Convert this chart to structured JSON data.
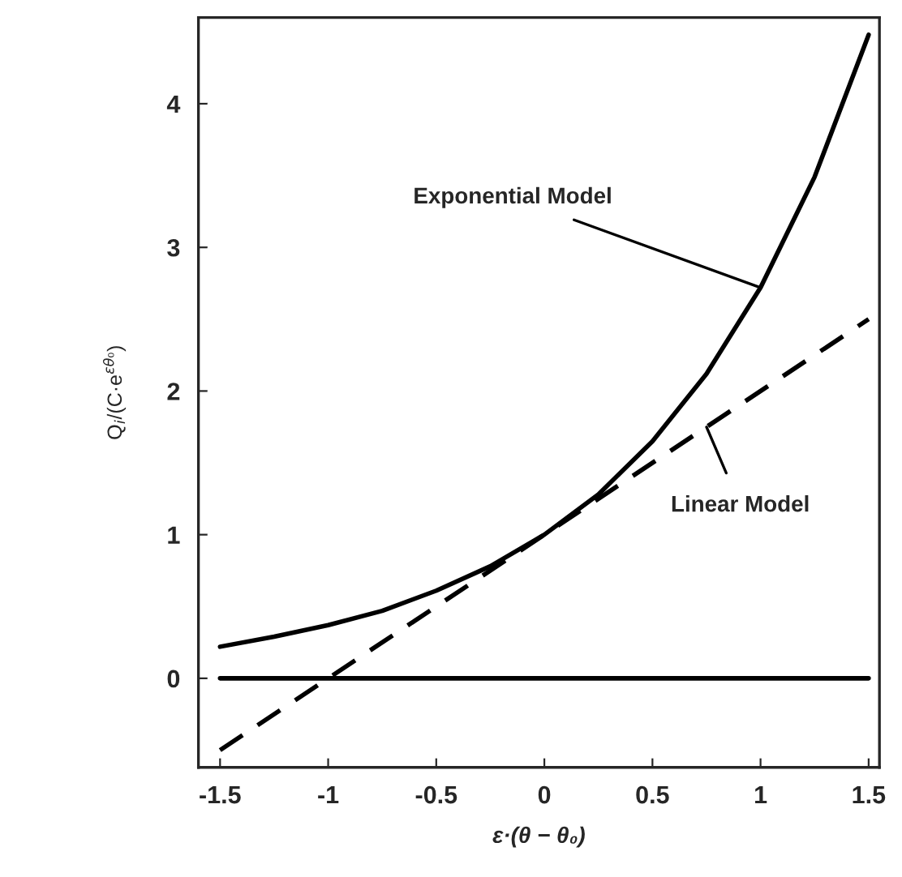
{
  "chart_data": {
    "type": "line",
    "xlabel": "ε·(θ − θ₀)",
    "ylabel": "Q$_{i}$/(C·e$^{εθ₀}$)",
    "xlim": [
      -1.6,
      1.55
    ],
    "ylim": [
      -0.62,
      4.6
    ],
    "xticks": [
      -1.5,
      -1,
      -0.5,
      0,
      0.5,
      1,
      1.5
    ],
    "yticks": [
      0,
      1,
      2,
      3,
      4
    ],
    "grid": false,
    "legend": false,
    "marker": "none",
    "series": [
      {
        "color": "#000000",
        "line_style": "solid",
        "x": [
          -1.5,
          -1.25,
          -1,
          -0.75,
          -0.5,
          -0.25,
          0,
          0.25,
          0.5,
          0.75,
          1,
          1.25,
          1.5
        ],
        "values": [
          0.22,
          0.29,
          0.37,
          0.47,
          0.61,
          0.78,
          1,
          1.28,
          1.65,
          2.12,
          2.72,
          3.49,
          4.48
        ]
      },
      {
        "color": "#000000",
        "line_style": "dashed",
        "x": [
          -1.5,
          1.5
        ],
        "values": [
          -0.5,
          2.5
        ]
      },
      {
        "color": "#000000",
        "line_style": "solid",
        "x": [
          -1.5,
          1.5
        ],
        "values": [
          0,
          0
        ]
      }
    ],
    "annotations": [
      {
        "text": "Exponential Model",
        "x": 1,
        "y": 2.72
      },
      {
        "text": "Linear Model",
        "x": 0.75,
        "y": 1.75
      }
    ]
  }
}
